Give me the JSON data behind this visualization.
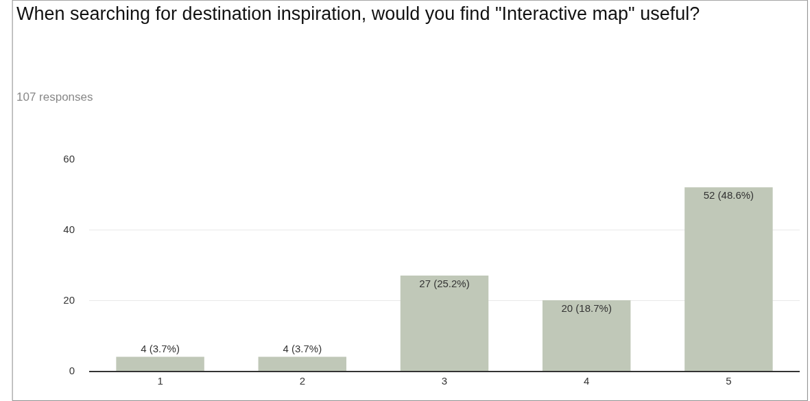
{
  "chart_data": {
    "type": "bar",
    "title": "When searching for destination inspiration, would you find \"Interactive map\" useful?",
    "subtitle": "107 responses",
    "categories": [
      "1",
      "2",
      "3",
      "4",
      "5"
    ],
    "values": [
      4,
      4,
      27,
      20,
      52
    ],
    "value_labels": [
      "4 (3.7%)",
      "4 (3.7%)",
      "27 (25.2%)",
      "20 (18.7%)",
      "52 (48.6%)"
    ],
    "color": "#c0c8b8",
    "ylim": [
      0,
      60
    ],
    "yticks": [
      0,
      20,
      40,
      60
    ],
    "grid": "y",
    "legend": false
  }
}
